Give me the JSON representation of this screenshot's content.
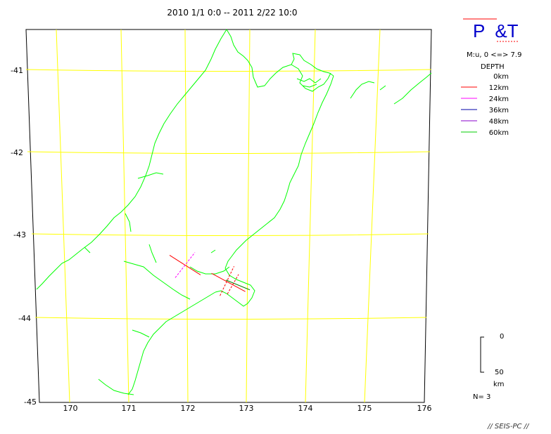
{
  "title": "2010 1/1 0:0 -- 2011 2/22 10:0",
  "mechanism_label": "P  &T",
  "magnitude_range": "M:u, 0 <=> 7.9",
  "depth_title": "DEPTH",
  "depth_legend": [
    {
      "label": "0km",
      "color": ""
    },
    {
      "label": "12km",
      "color": "#ff0000"
    },
    {
      "label": "24km",
      "color": "#ff00ff"
    },
    {
      "label": "36km",
      "color": "#0000aa"
    },
    {
      "label": "48km",
      "color": "#8800cc"
    },
    {
      "label": "60km",
      "color": "#00cc00"
    }
  ],
  "map": {
    "lat_labels": [
      "-41",
      "-42",
      "-43",
      "-44",
      "-45"
    ],
    "lon_labels": [
      "170",
      "171",
      "172",
      "173",
      "174",
      "175",
      "176"
    ],
    "grid_color": "#ffff00",
    "coast_color": "#00ff00",
    "events": [
      {
        "lon": 172.0,
        "lat": -43.35,
        "p_color": "#ff0000",
        "t_color": "#ff00ff"
      },
      {
        "lon": 172.7,
        "lat": -43.55,
        "p_color": "#ff0000",
        "t_color": "#ff0000"
      },
      {
        "lon": 172.8,
        "lat": -43.58,
        "p_color": "#008800",
        "t_color": "#ff0000"
      }
    ]
  },
  "scale_bar": {
    "top": "0",
    "bottom": "50",
    "unit": "km"
  },
  "count_label": "N= 3",
  "footer": "// SEIS-PC //"
}
